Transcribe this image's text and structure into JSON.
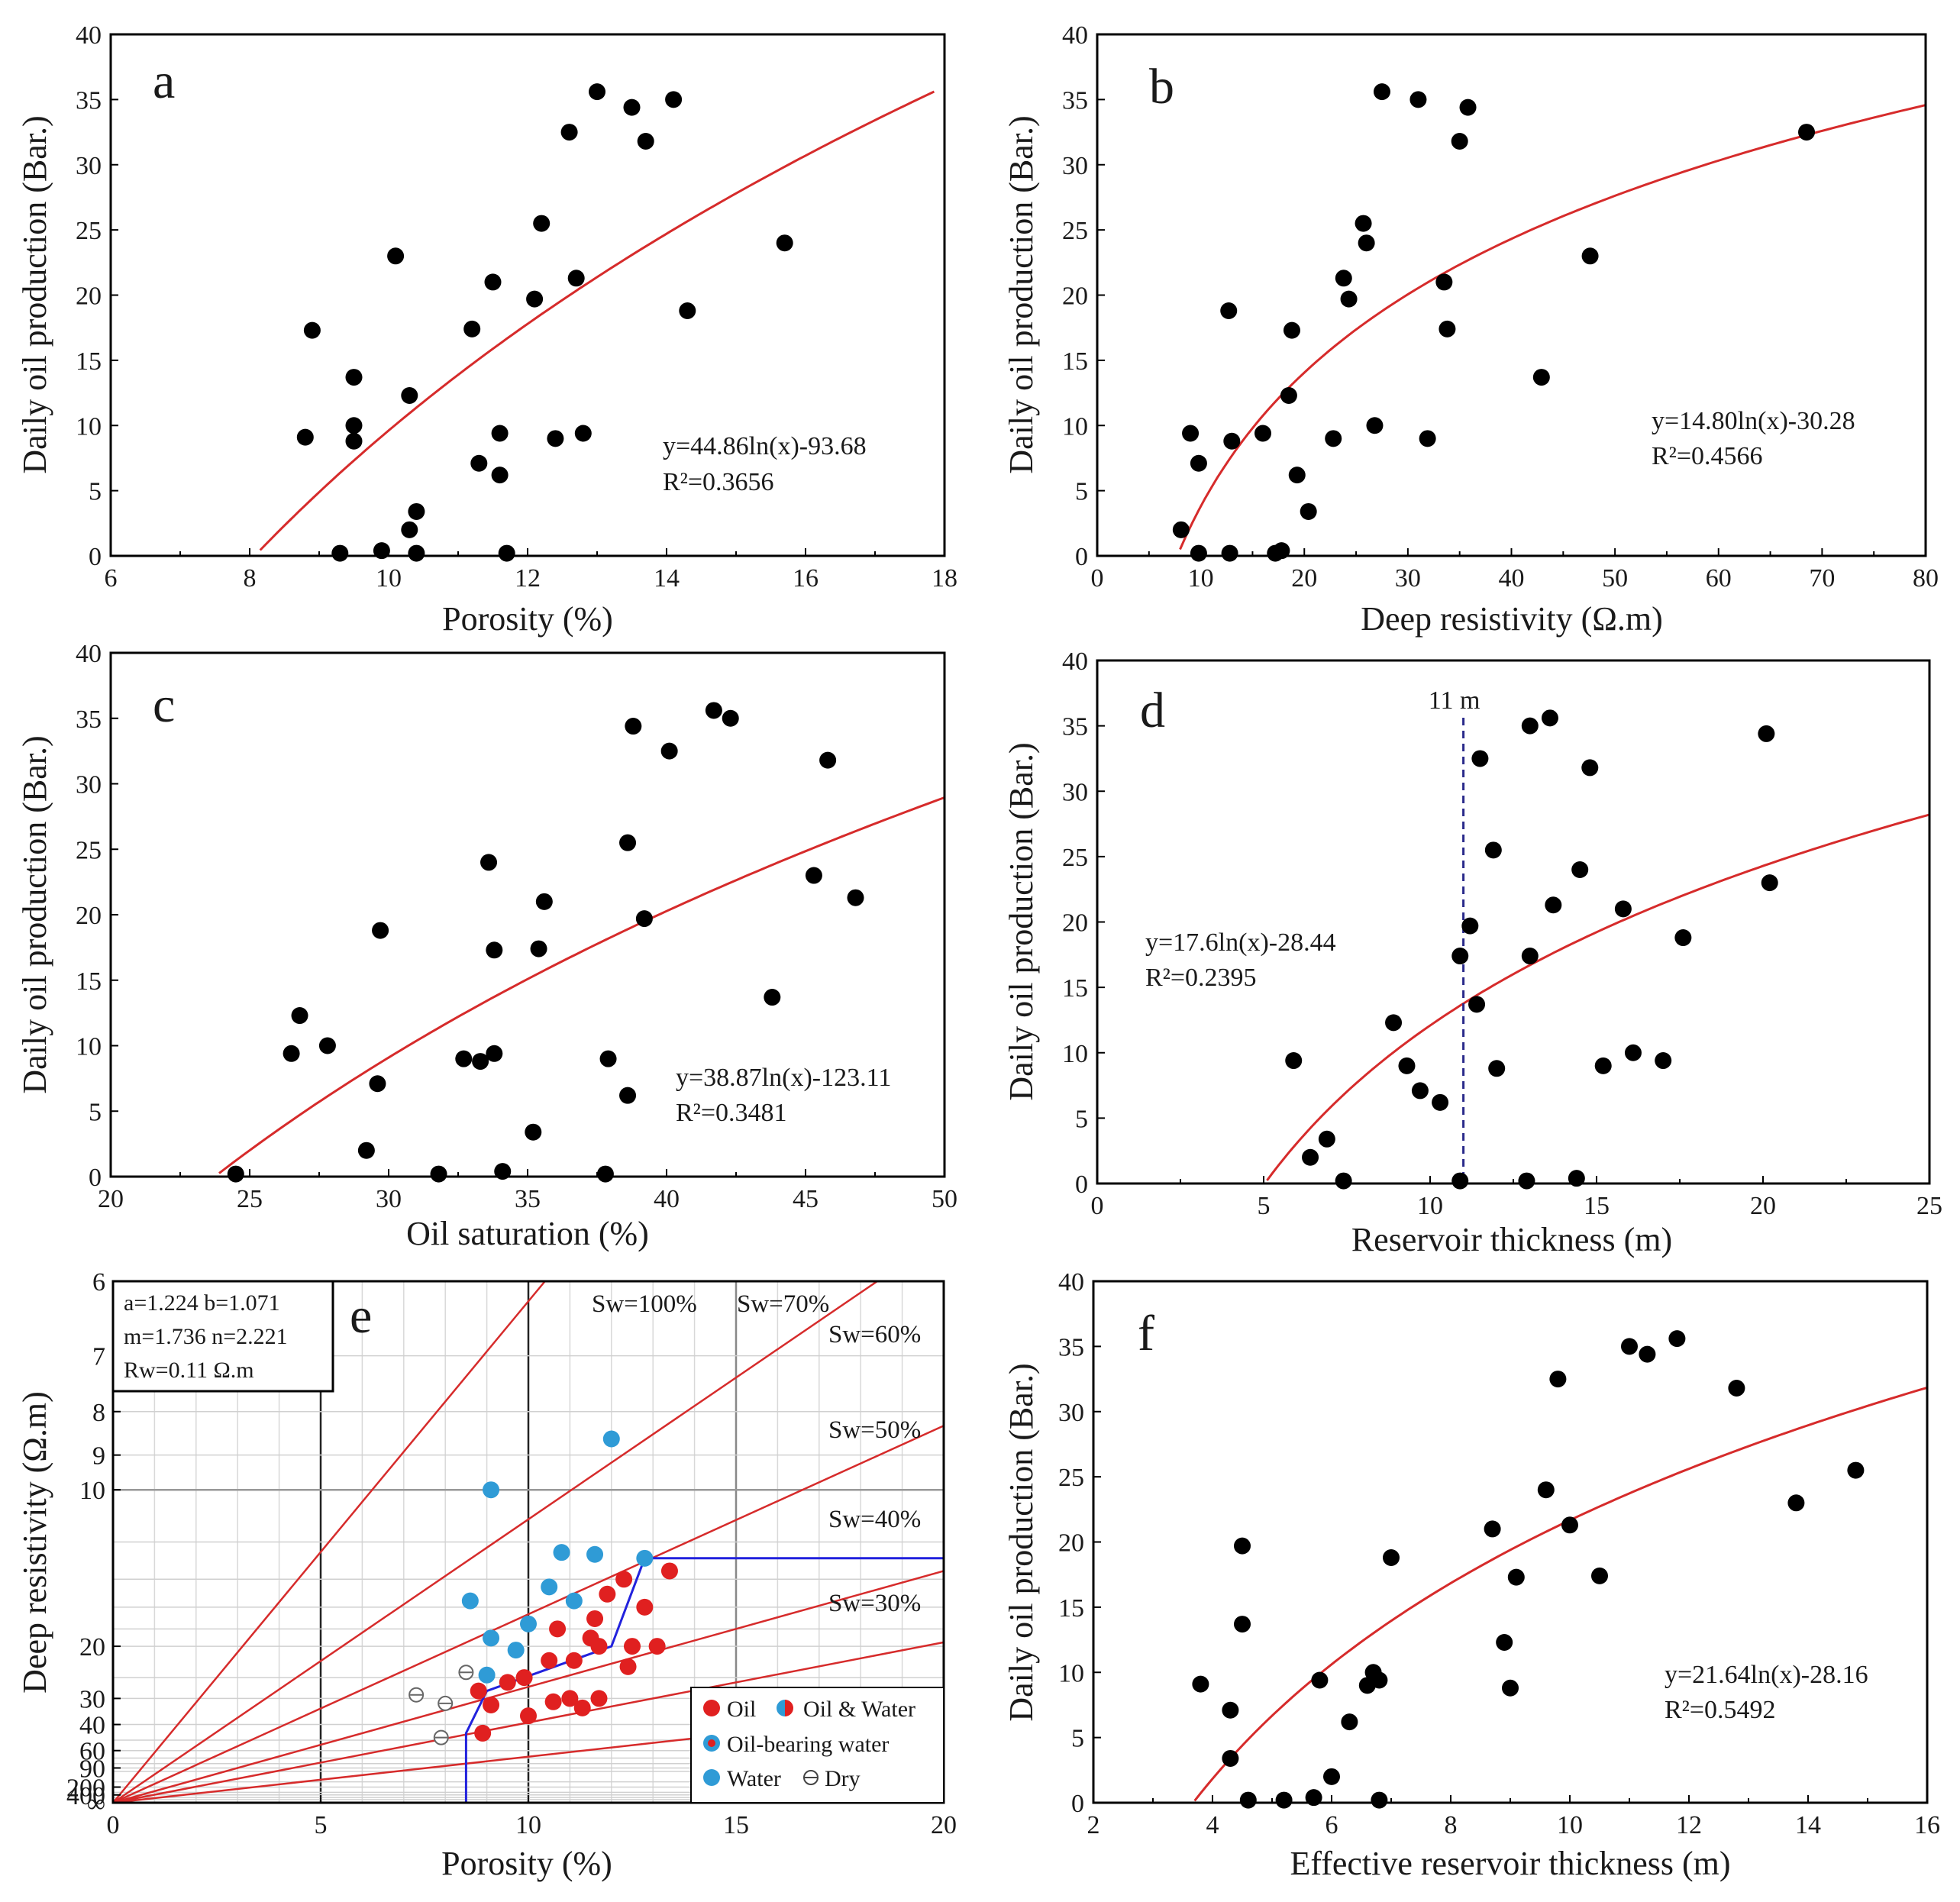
{
  "colors": {
    "fit": "#d62b2b",
    "point": "#000000",
    "oil": "#e02020",
    "water": "#2f9bd6",
    "cutoff": "#2222dd",
    "dashed": "#2a2a8a"
  },
  "chart_data": [
    {
      "id": "a",
      "type": "scatter",
      "letter": "a",
      "xlabel": "Porosity (%)",
      "ylabel": "Daily oil production (Bar.)",
      "xlim": [
        6,
        18
      ],
      "ylim": [
        0,
        40
      ],
      "xticks": [
        "6",
        "8",
        "10",
        "12",
        "14",
        "16",
        "18"
      ],
      "yticks": [
        "0",
        "5",
        "10",
        "15",
        "20",
        "25",
        "30",
        "35",
        "40"
      ],
      "fit": {
        "a": 44.86,
        "b": -93.68,
        "x0": 8.15,
        "x1": 17.85
      },
      "equation": "y=44.86ln(x)-93.68",
      "r2": "R²=0.3656",
      "points": [
        [
          13.0,
          35.6
        ],
        [
          13.5,
          34.4
        ],
        [
          14.1,
          35.0
        ],
        [
          12.6,
          32.5
        ],
        [
          13.7,
          31.8
        ],
        [
          12.2,
          25.5
        ],
        [
          15.7,
          24.0
        ],
        [
          10.1,
          23.0
        ],
        [
          11.5,
          21.0
        ],
        [
          12.7,
          21.3
        ],
        [
          12.1,
          19.7
        ],
        [
          14.3,
          18.8
        ],
        [
          8.9,
          17.3
        ],
        [
          11.2,
          17.4
        ],
        [
          9.5,
          13.7
        ],
        [
          10.3,
          12.3
        ],
        [
          9.5,
          10.0
        ],
        [
          8.8,
          9.1
        ],
        [
          9.5,
          8.8
        ],
        [
          11.6,
          9.4
        ],
        [
          12.4,
          9.0
        ],
        [
          12.8,
          9.4
        ],
        [
          11.3,
          7.1
        ],
        [
          11.6,
          6.2
        ],
        [
          10.4,
          3.4
        ],
        [
          10.3,
          2.0
        ],
        [
          9.3,
          0.2
        ],
        [
          9.9,
          0.4
        ],
        [
          10.4,
          0.2
        ],
        [
          11.7,
          0.2
        ]
      ]
    },
    {
      "id": "b",
      "type": "scatter",
      "letter": "b",
      "xlabel": "Deep resistivity (Ω.m)",
      "ylabel": "Daily oil production (Bar.)",
      "xlim": [
        0,
        80
      ],
      "ylim": [
        0,
        40
      ],
      "xticks": [
        "0",
        "10",
        "20",
        "30",
        "40",
        "50",
        "60",
        "70",
        "80"
      ],
      "yticks": [
        "0",
        "5",
        "10",
        "15",
        "20",
        "25",
        "30",
        "35",
        "40"
      ],
      "fit": {
        "a": 14.8,
        "b": -30.28,
        "x0": 8.0,
        "x1": 80.0
      },
      "equation": "y=14.80ln(x)-30.28",
      "r2": "R²=0.4566",
      "points": [
        [
          27.5,
          35.6
        ],
        [
          31.0,
          35.0
        ],
        [
          35.8,
          34.4
        ],
        [
          68.5,
          32.5
        ],
        [
          35.0,
          31.8
        ],
        [
          25.7,
          25.5
        ],
        [
          26.0,
          24.0
        ],
        [
          47.6,
          23.0
        ],
        [
          23.8,
          21.3
        ],
        [
          33.5,
          21.0
        ],
        [
          24.3,
          19.7
        ],
        [
          12.7,
          18.8
        ],
        [
          18.8,
          17.3
        ],
        [
          33.8,
          17.4
        ],
        [
          42.9,
          13.7
        ],
        [
          18.5,
          12.3
        ],
        [
          26.8,
          10.0
        ],
        [
          9.0,
          9.4
        ],
        [
          13.0,
          8.8
        ],
        [
          16.0,
          9.4
        ],
        [
          22.8,
          9.0
        ],
        [
          31.9,
          9.0
        ],
        [
          9.8,
          7.1
        ],
        [
          19.3,
          6.2
        ],
        [
          20.4,
          3.4
        ],
        [
          8.1,
          2.0
        ],
        [
          9.8,
          0.2
        ],
        [
          12.8,
          0.2
        ],
        [
          17.2,
          0.2
        ],
        [
          17.8,
          0.4
        ]
      ]
    },
    {
      "id": "c",
      "type": "scatter",
      "letter": "c",
      "xlabel": "Oil saturation (%)",
      "ylabel": "Daily oil production (Bar.)",
      "xlim": [
        20,
        50
      ],
      "ylim": [
        0,
        40
      ],
      "xticks": [
        "20",
        "25",
        "30",
        "35",
        "40",
        "45",
        "50"
      ],
      "yticks": [
        "0",
        "5",
        "10",
        "15",
        "20",
        "25",
        "30",
        "35",
        "40"
      ],
      "fit": {
        "a": 38.87,
        "b": -123.11,
        "x0": 23.9,
        "x1": 50.0
      },
      "equation": "y=38.87ln(x)-123.11",
      "r2": "R²=0.3481",
      "points": [
        [
          41.7,
          35.6
        ],
        [
          42.3,
          35.0
        ],
        [
          38.8,
          34.4
        ],
        [
          40.1,
          32.5
        ],
        [
          45.8,
          31.8
        ],
        [
          38.6,
          25.5
        ],
        [
          33.6,
          24.0
        ],
        [
          45.3,
          23.0
        ],
        [
          35.6,
          21.0
        ],
        [
          46.8,
          21.3
        ],
        [
          39.2,
          19.7
        ],
        [
          29.7,
          18.8
        ],
        [
          33.8,
          17.3
        ],
        [
          35.4,
          17.4
        ],
        [
          43.8,
          13.7
        ],
        [
          26.8,
          12.3
        ],
        [
          27.8,
          10.0
        ],
        [
          26.5,
          9.4
        ],
        [
          32.7,
          9.0
        ],
        [
          33.8,
          9.4
        ],
        [
          33.3,
          8.8
        ],
        [
          37.9,
          9.0
        ],
        [
          29.6,
          7.1
        ],
        [
          38.6,
          6.2
        ],
        [
          35.2,
          3.4
        ],
        [
          29.2,
          2.0
        ],
        [
          31.8,
          0.2
        ],
        [
          34.1,
          0.4
        ],
        [
          37.8,
          0.2
        ],
        [
          24.5,
          0.2
        ]
      ]
    },
    {
      "id": "d",
      "type": "scatter",
      "letter": "d",
      "xlabel": "Reservoir thickness (m)",
      "ylabel": "Daily oil production (Bar.)",
      "xlim": [
        0,
        25
      ],
      "ylim": [
        0,
        40
      ],
      "xticks": [
        "0",
        "5",
        "10",
        "15",
        "20",
        "25"
      ],
      "yticks": [
        "0",
        "5",
        "10",
        "15",
        "20",
        "25",
        "30",
        "35",
        "40"
      ],
      "fit": {
        "a": 17.6,
        "b": -28.44,
        "x0": 5.1,
        "x1": 25.0
      },
      "equation": "y=17.6ln(x)-28.44",
      "r2": "R²=0.2395",
      "vline": {
        "x": 11,
        "label": "11 m"
      },
      "points": [
        [
          13.6,
          35.6
        ],
        [
          13.0,
          35.0
        ],
        [
          20.1,
          34.4
        ],
        [
          11.5,
          32.5
        ],
        [
          14.8,
          31.8
        ],
        [
          11.9,
          25.5
        ],
        [
          14.5,
          24.0
        ],
        [
          20.2,
          23.0
        ],
        [
          13.7,
          21.3
        ],
        [
          15.8,
          21.0
        ],
        [
          11.2,
          19.7
        ],
        [
          17.6,
          18.8
        ],
        [
          10.9,
          17.4
        ],
        [
          13.0,
          17.4
        ],
        [
          11.4,
          13.7
        ],
        [
          8.9,
          12.3
        ],
        [
          16.1,
          10.0
        ],
        [
          5.9,
          9.4
        ],
        [
          9.3,
          9.0
        ],
        [
          12.0,
          8.8
        ],
        [
          15.2,
          9.0
        ],
        [
          17.0,
          9.4
        ],
        [
          9.7,
          7.1
        ],
        [
          10.3,
          6.2
        ],
        [
          6.9,
          3.4
        ],
        [
          6.4,
          2.0
        ],
        [
          7.4,
          0.2
        ],
        [
          10.9,
          0.2
        ],
        [
          12.9,
          0.2
        ],
        [
          14.4,
          0.4
        ]
      ]
    },
    {
      "id": "e",
      "type": "scatter",
      "letter": "e",
      "xlabel": "Porosity (%)",
      "ylabel": "Deep resistivity (Ω.m)",
      "xlim": [
        0,
        20
      ],
      "xticks": [
        "0",
        "5",
        "10",
        "15",
        "20"
      ],
      "yticks": [
        "∞",
        "400",
        "200",
        "90",
        "60",
        "40",
        "30",
        "20",
        "10",
        "9",
        "8",
        "7",
        "6"
      ],
      "params": {
        "line1": "a=1.224   b=1.071",
        "line2": "m=1.736   n=2.221",
        "line3": "Rw=0.11 Ω.m"
      },
      "sw_labels": [
        "Sw=100%",
        "Sw=70%",
        "Sw=60%",
        "Sw=50%",
        "Sw=40%",
        "Sw=30%"
      ],
      "legend": {
        "oil": "Oil",
        "oil_water": "Oil & Water",
        "oil_bearing_water": "Oil-bearing water",
        "water": "Water",
        "dry": "Dry"
      },
      "oil_points": [
        [
          8.8,
          28
        ],
        [
          9.1,
          32
        ],
        [
          8.9,
          45
        ],
        [
          9.5,
          26
        ],
        [
          9.9,
          25
        ],
        [
          10.5,
          22
        ],
        [
          10.7,
          18
        ],
        [
          10.0,
          36
        ],
        [
          10.6,
          31
        ],
        [
          11.0,
          30
        ],
        [
          11.3,
          33
        ],
        [
          11.1,
          22
        ],
        [
          11.5,
          19
        ],
        [
          11.6,
          17
        ],
        [
          11.7,
          20
        ],
        [
          11.9,
          15
        ],
        [
          12.3,
          14
        ],
        [
          12.4,
          23
        ],
        [
          12.5,
          20
        ],
        [
          12.8,
          16
        ],
        [
          13.1,
          20
        ],
        [
          13.4,
          13.5
        ],
        [
          11.7,
          30
        ]
      ],
      "water_points": [
        [
          8.6,
          15.5
        ],
        [
          9.0,
          24.5
        ],
        [
          9.1,
          19
        ],
        [
          9.1,
          10
        ],
        [
          9.7,
          20.5
        ],
        [
          10.0,
          17.5
        ],
        [
          10.5,
          14.5
        ],
        [
          10.8,
          12.5
        ],
        [
          11.1,
          15.5
        ],
        [
          11.6,
          12.6
        ],
        [
          12.0,
          8.6
        ],
        [
          12.8,
          12.8
        ]
      ],
      "dry_points": [
        [
          7.3,
          29
        ],
        [
          8.0,
          31.5
        ],
        [
          7.9,
          48
        ],
        [
          8.5,
          24
        ]
      ]
    },
    {
      "id": "f",
      "type": "scatter",
      "letter": "f",
      "xlabel": "Effective reservoir thickness (m)",
      "ylabel": "Daily oil production (Bar.)",
      "xlim": [
        2,
        16
      ],
      "ylim": [
        0,
        40
      ],
      "xticks": [
        "2",
        "4",
        "6",
        "8",
        "10",
        "12",
        "14",
        "16"
      ],
      "yticks": [
        "0",
        "5",
        "10",
        "15",
        "20",
        "25",
        "30",
        "35",
        "40"
      ],
      "fit": {
        "a": 21.64,
        "b": -28.16,
        "x0": 3.7,
        "x1": 16.0
      },
      "equation": "y=21.64ln(x)-28.16",
      "r2": "R²=0.5492",
      "points": [
        [
          11.8,
          35.6
        ],
        [
          11.0,
          35.0
        ],
        [
          11.3,
          34.4
        ],
        [
          9.8,
          32.5
        ],
        [
          12.8,
          31.8
        ],
        [
          14.8,
          25.5
        ],
        [
          9.6,
          24.0
        ],
        [
          13.8,
          23.0
        ],
        [
          8.7,
          21.0
        ],
        [
          10.0,
          21.3
        ],
        [
          4.5,
          19.7
        ],
        [
          7.0,
          18.8
        ],
        [
          9.1,
          17.3
        ],
        [
          10.5,
          17.4
        ],
        [
          4.5,
          13.7
        ],
        [
          8.9,
          12.3
        ],
        [
          6.7,
          10.0
        ],
        [
          3.8,
          9.1
        ],
        [
          5.8,
          9.4
        ],
        [
          6.6,
          9.0
        ],
        [
          6.8,
          9.4
        ],
        [
          9.0,
          8.8
        ],
        [
          4.3,
          7.1
        ],
        [
          6.3,
          6.2
        ],
        [
          4.3,
          3.4
        ],
        [
          6.0,
          2.0
        ],
        [
          4.6,
          0.2
        ],
        [
          5.2,
          0.2
        ],
        [
          5.7,
          0.4
        ],
        [
          6.8,
          0.2
        ]
      ]
    }
  ]
}
